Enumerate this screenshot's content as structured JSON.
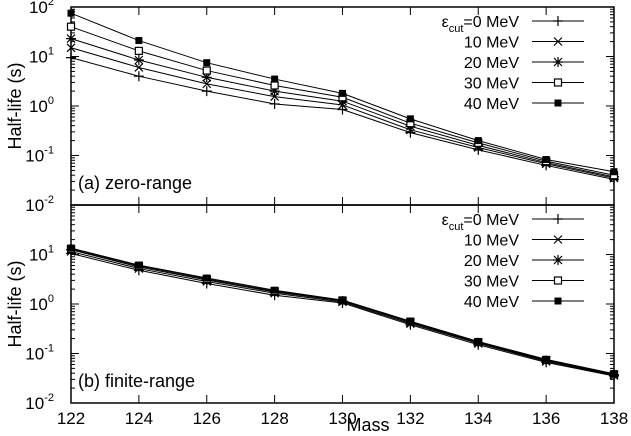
{
  "chart_data": [
    {
      "type": "line",
      "panel_label": "(a) zero-range",
      "xlabel": "Mass",
      "ylabel": "Half-life (s)",
      "x": [
        122,
        124,
        126,
        128,
        130,
        132,
        134,
        136,
        138
      ],
      "xlim": [
        122,
        138
      ],
      "ylim": [
        0.01,
        100
      ],
      "yscale": "log",
      "yticks": [
        {
          "base": "10",
          "exp": "-2"
        },
        {
          "base": "10",
          "exp": "-1"
        },
        {
          "base": "10",
          "exp": "0"
        },
        {
          "base": "10",
          "exp": "1"
        },
        {
          "base": "10",
          "exp": "2"
        }
      ],
      "legend_position": "top-right",
      "series": [
        {
          "name": "0 MeV",
          "marker": "plus",
          "values": [
            9.5,
            4.0,
            2.0,
            1.1,
            0.85,
            0.29,
            0.13,
            0.063,
            0.033
          ]
        },
        {
          "name": "10 MeV",
          "marker": "cross",
          "values": [
            15,
            6.0,
            2.8,
            1.55,
            1.05,
            0.33,
            0.145,
            0.068,
            0.035
          ]
        },
        {
          "name": "20 MeV",
          "marker": "star",
          "values": [
            23,
            8.5,
            3.8,
            2.0,
            1.25,
            0.39,
            0.16,
            0.072,
            0.037
          ]
        },
        {
          "name": "30 MeV",
          "marker": "open-square",
          "values": [
            40,
            13,
            5.2,
            2.6,
            1.5,
            0.45,
            0.18,
            0.077,
            0.04
          ]
        },
        {
          "name": "40 MeV",
          "marker": "filled-square",
          "values": [
            75,
            21,
            7.5,
            3.5,
            1.8,
            0.55,
            0.2,
            0.083,
            0.047
          ]
        }
      ]
    },
    {
      "type": "line",
      "panel_label": "(b) finite-range",
      "xlabel": "Mass",
      "ylabel": "Half-life (s)",
      "x": [
        122,
        124,
        126,
        128,
        130,
        132,
        134,
        136,
        138
      ],
      "xticks": [
        "122",
        "124",
        "126",
        "128",
        "130",
        "132",
        "134",
        "136",
        "138"
      ],
      "xlim": [
        122,
        138
      ],
      "ylim": [
        0.01,
        100
      ],
      "yscale": "log",
      "yticks": [
        {
          "base": "10",
          "exp": "-2"
        },
        {
          "base": "10",
          "exp": "-1"
        },
        {
          "base": "10",
          "exp": "0"
        },
        {
          "base": "10",
          "exp": "1"
        }
      ],
      "legend_position": "top-right",
      "series": [
        {
          "name": "0 MeV",
          "marker": "plus",
          "values": [
            10.5,
            4.8,
            2.6,
            1.5,
            1.05,
            0.38,
            0.15,
            0.066,
            0.035
          ]
        },
        {
          "name": "10 MeV",
          "marker": "cross",
          "values": [
            11.5,
            5.2,
            2.85,
            1.65,
            1.1,
            0.4,
            0.16,
            0.069,
            0.036
          ]
        },
        {
          "name": "20 MeV",
          "marker": "star",
          "values": [
            12.5,
            5.6,
            3.05,
            1.75,
            1.15,
            0.42,
            0.165,
            0.072,
            0.037
          ]
        },
        {
          "name": "30 MeV",
          "marker": "open-square",
          "values": [
            13,
            5.9,
            3.2,
            1.82,
            1.18,
            0.44,
            0.17,
            0.074,
            0.038
          ]
        },
        {
          "name": "40 MeV",
          "marker": "filled-square",
          "values": [
            13.5,
            6.1,
            3.35,
            1.9,
            1.2,
            0.45,
            0.175,
            0.076,
            0.039
          ]
        }
      ]
    }
  ],
  "legend": {
    "prefix": "ε",
    "subscript": "cut",
    "equals": "="
  },
  "colors": {
    "line": "#000000",
    "background": "#ffffff"
  }
}
